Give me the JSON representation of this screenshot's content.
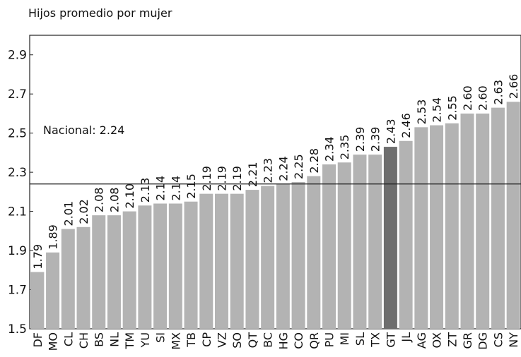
{
  "chart_data": {
    "type": "bar",
    "title": "Hijos promedio por mujer",
    "categories": [
      "DF",
      "MO",
      "CL",
      "CH",
      "BS",
      "NL",
      "TM",
      "YU",
      "SI",
      "MX",
      "TB",
      "CP",
      "VZ",
      "SO",
      "QT",
      "BC",
      "HG",
      "CO",
      "QR",
      "PU",
      "MI",
      "SL",
      "TX",
      "GT",
      "JL",
      "AG",
      "OX",
      "ZT",
      "GR",
      "DG",
      "CS",
      "NY"
    ],
    "values": [
      1.79,
      1.89,
      2.01,
      2.02,
      2.08,
      2.08,
      2.1,
      2.13,
      2.14,
      2.14,
      2.15,
      2.19,
      2.19,
      2.19,
      2.21,
      2.23,
      2.24,
      2.25,
      2.28,
      2.34,
      2.35,
      2.39,
      2.39,
      2.43,
      2.46,
      2.53,
      2.54,
      2.55,
      2.6,
      2.6,
      2.63,
      2.66
    ],
    "value_labels": [
      "1.79",
      "1.89",
      "2.01",
      "2.02",
      "2.08",
      "2.08",
      "2.10",
      "2.13",
      "2.14",
      "2.14",
      "2.15",
      "2.19",
      "2.19",
      "2.19",
      "2.21",
      "2.23",
      "2.24",
      "2.25",
      "2.28",
      "2.34",
      "2.35",
      "2.39",
      "2.39",
      "2.43",
      "2.46",
      "2.53",
      "2.54",
      "2.55",
      "2.60",
      "2.60",
      "2.63",
      "2.66"
    ],
    "colors": [
      "#b3b3b3",
      "#b3b3b3",
      "#b3b3b3",
      "#b3b3b3",
      "#b3b3b3",
      "#b3b3b3",
      "#b3b3b3",
      "#b3b3b3",
      "#b3b3b3",
      "#b3b3b3",
      "#b3b3b3",
      "#b3b3b3",
      "#b3b3b3",
      "#b3b3b3",
      "#b3b3b3",
      "#b3b3b3",
      "#b3b3b3",
      "#b3b3b3",
      "#b3b3b3",
      "#b3b3b3",
      "#b3b3b3",
      "#b3b3b3",
      "#b3b3b3",
      "#6e6e6e",
      "#b3b3b3",
      "#b3b3b3",
      "#b3b3b3",
      "#b3b3b3",
      "#b3b3b3",
      "#b3b3b3",
      "#b3b3b3",
      "#b3b3b3"
    ],
    "ylim": [
      1.5,
      3.0
    ],
    "yticks": [
      1.5,
      1.7,
      1.9,
      2.1,
      2.3,
      2.5,
      2.7,
      2.9
    ],
    "reference_line": {
      "value": 2.24,
      "label": "Nacional: 2.24"
    }
  }
}
